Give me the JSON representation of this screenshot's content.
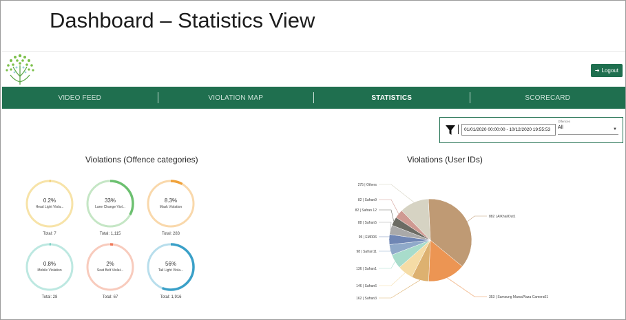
{
  "slide_title": "Dashboard – Statistics View",
  "logout_label": "Logout",
  "nav": [
    "VIDEO FEED",
    "VIOLATION MAP",
    "STATISTICS",
    "SCORECARD"
  ],
  "filter": {
    "date_range": "01/01/2020 00:00:00 - 10/12/2020 19:55:53",
    "offences_label": "Offences",
    "offences_value": "All"
  },
  "left_title": "Violations (Offence categories)",
  "right_title": "Violations (User IDs)",
  "categories": [
    {
      "pct": "0.2%",
      "name": "Head Light Viola...",
      "total": "Total: 7",
      "value": 0.002,
      "color": "#f2c14e",
      "track": "#f7e3a8"
    },
    {
      "pct": "33%",
      "name": "Lane Change Viol...",
      "total": "Total: 1,115",
      "value": 0.33,
      "color": "#6cc070",
      "track": "#c5e6c5"
    },
    {
      "pct": "8.3%",
      "name": "Mask Violation",
      "total": "Total: 283",
      "value": 0.083,
      "color": "#f0a23a",
      "track": "#f9d8ab"
    },
    {
      "pct": "0.8%",
      "name": "Mobile Violation",
      "total": "Total: 28",
      "value": 0.008,
      "color": "#5ec4b6",
      "track": "#bde8e1"
    },
    {
      "pct": "2%",
      "name": "Seat Belt Violat...",
      "total": "Total: 67",
      "value": 0.02,
      "color": "#f07a5a",
      "track": "#f8cbbd"
    },
    {
      "pct": "56%",
      "name": "Tail Light Viola...",
      "total": "Total: 1,916",
      "value": 0.56,
      "color": "#3aa0c8",
      "track": "#b8deec"
    }
  ],
  "chart_data": {
    "type": "pie",
    "title": "Violations (User IDs)",
    "labels": [
      "AlKhailOut1",
      "Samsung MarsaPlaza Camera01",
      "Safran3",
      "Safran6",
      "Safran1",
      "Safran11",
      "EMR06",
      "Safran5",
      "Safran 12",
      "Safran9",
      "Others"
    ],
    "values": [
      882,
      353,
      162,
      146,
      136,
      98,
      95,
      88,
      82,
      82,
      275
    ],
    "label_texts": [
      "882 | AlKhailOut1",
      "353 | Samsung MarsaPlaza Camera01",
      "162 | Safran3",
      "146 | Safran6",
      "136 | Safran1",
      "98 | Safran11",
      "95 | EMR06",
      "88 | Safran5",
      "82 | Safran 12",
      "82 | Safran9",
      "275 | Others"
    ],
    "colors": [
      "#bf9a74",
      "#ec9553",
      "#ddb170",
      "#f5dca6",
      "#a8dccb",
      "#8fa9c9",
      "#6f86b4",
      "#a9a9a9",
      "#6b6b63",
      "#cf9a92",
      "#d6d3c3"
    ]
  }
}
